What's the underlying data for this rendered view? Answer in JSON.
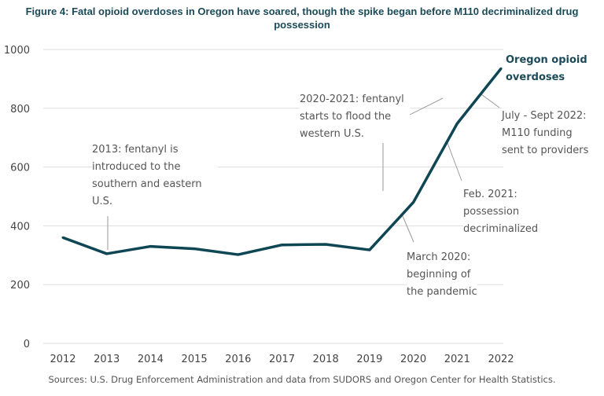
{
  "chart_data": {
    "type": "line",
    "title": "Figure 4: Fatal opioid overdoses in Oregon have soared, though the spike began before M110 decriminalized drug possession",
    "x": [
      2012,
      2013,
      2014,
      2015,
      2016,
      2017,
      2018,
      2019,
      2020,
      2021,
      2022
    ],
    "x_tick_labels": [
      "2012",
      "2013",
      "2014",
      "2015",
      "2016",
      "2017",
      "2018",
      "2019",
      "2020",
      "2021",
      "2022"
    ],
    "series": [
      {
        "name": "Oregon opioid overdoses",
        "values": [
          360,
          305,
          330,
          322,
          302,
          335,
          337,
          318,
          480,
          748,
          935
        ],
        "color": "#0f4654"
      }
    ],
    "ylim": [
      0,
      1000
    ],
    "y_ticks": [
      0,
      200,
      400,
      600,
      800,
      1000
    ],
    "y_tick_labels": [
      "0",
      "200",
      "400",
      "600",
      "800",
      "1000"
    ],
    "grid": "horizontal",
    "legend": "direct label at line end (top-right)",
    "annotations": [
      {
        "text": "2013: fentanyl is introduced to the southern and eastern U.S."
      },
      {
        "text": "2020-2021: fentanyl starts to flood the western U.S."
      },
      {
        "text": "March 2020: beginning of the pandemic"
      },
      {
        "text": "Feb. 2021: possession decriminalized"
      },
      {
        "text": "July - Sept 2022: M110 funding sent to providers"
      }
    ],
    "source": "Sources: U.S. Drug Enforcement Administration and data from SUDORS and Oregon Center for Health Statistics."
  }
}
